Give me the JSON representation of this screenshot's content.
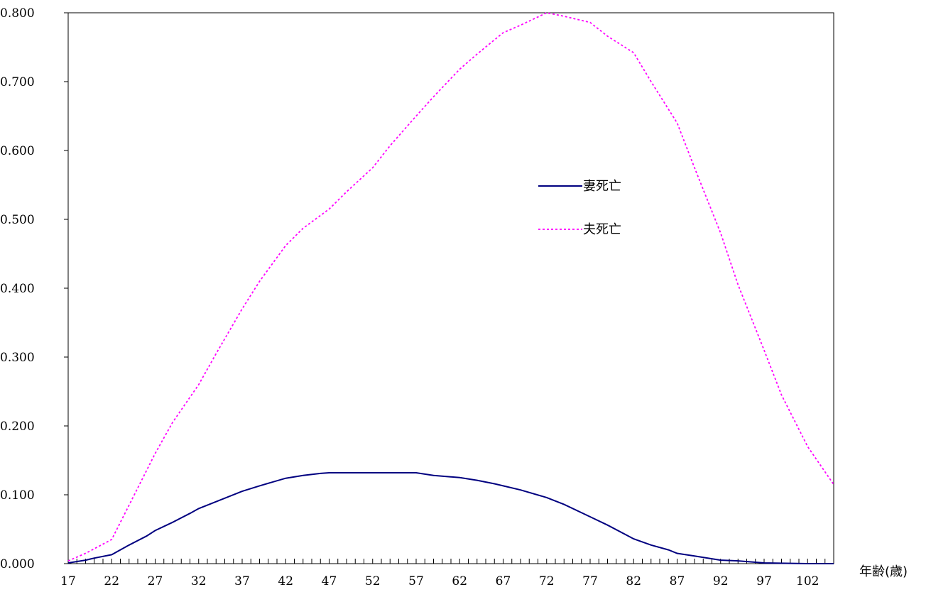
{
  "chart_data": {
    "type": "line",
    "title": "",
    "xlabel": "年齢(歳)",
    "ylabel": "",
    "xlim": [
      17,
      105
    ],
    "ylim": [
      0,
      0.8
    ],
    "x_tick_labels": [
      "17",
      "22",
      "27",
      "32",
      "37",
      "42",
      "47",
      "52",
      "57",
      "62",
      "67",
      "72",
      "77",
      "82",
      "87",
      "92",
      "97",
      "102"
    ],
    "y_tick_labels": [
      "0.000",
      "0.100",
      "0.200",
      "0.300",
      "0.400",
      "0.500",
      "0.600",
      "0.700",
      "0.800"
    ],
    "legend_position": "center-right inside plot",
    "grid": false,
    "series": [
      {
        "name": "妻死亡",
        "color": "#000080",
        "style": "solid",
        "points": [
          [
            17,
            0.001
          ],
          [
            19,
            0.005
          ],
          [
            20,
            0.008
          ],
          [
            22,
            0.013
          ],
          [
            24,
            0.027
          ],
          [
            26,
            0.04
          ],
          [
            27,
            0.048
          ],
          [
            29,
            0.06
          ],
          [
            31,
            0.073
          ],
          [
            32,
            0.08
          ],
          [
            34,
            0.09
          ],
          [
            37,
            0.105
          ],
          [
            39,
            0.113
          ],
          [
            42,
            0.124
          ],
          [
            44,
            0.128
          ],
          [
            46,
            0.131
          ],
          [
            47,
            0.132
          ],
          [
            52,
            0.132
          ],
          [
            57,
            0.132
          ],
          [
            59,
            0.128
          ],
          [
            62,
            0.125
          ],
          [
            64,
            0.121
          ],
          [
            66,
            0.116
          ],
          [
            67,
            0.113
          ],
          [
            69,
            0.107
          ],
          [
            72,
            0.096
          ],
          [
            74,
            0.086
          ],
          [
            77,
            0.068
          ],
          [
            79,
            0.056
          ],
          [
            82,
            0.036
          ],
          [
            84,
            0.027
          ],
          [
            86,
            0.02
          ],
          [
            87,
            0.015
          ],
          [
            89,
            0.011
          ],
          [
            92,
            0.005
          ],
          [
            94,
            0.004
          ],
          [
            97,
            0.001
          ],
          [
            102,
            0.0
          ],
          [
            105,
            0.0
          ]
        ]
      },
      {
        "name": "夫死亡",
        "color": "#ff00ff",
        "style": "dotted",
        "points": [
          [
            17,
            0.004
          ],
          [
            19,
            0.015
          ],
          [
            22,
            0.035
          ],
          [
            24,
            0.085
          ],
          [
            27,
            0.16
          ],
          [
            29,
            0.205
          ],
          [
            32,
            0.26
          ],
          [
            34,
            0.305
          ],
          [
            37,
            0.37
          ],
          [
            39,
            0.41
          ],
          [
            42,
            0.462
          ],
          [
            44,
            0.487
          ],
          [
            47,
            0.515
          ],
          [
            49,
            0.54
          ],
          [
            52,
            0.575
          ],
          [
            54,
            0.607
          ],
          [
            57,
            0.65
          ],
          [
            59,
            0.678
          ],
          [
            62,
            0.718
          ],
          [
            64,
            0.74
          ],
          [
            67,
            0.771
          ],
          [
            69,
            0.782
          ],
          [
            72,
            0.8
          ],
          [
            74,
            0.795
          ],
          [
            77,
            0.786
          ],
          [
            79,
            0.766
          ],
          [
            82,
            0.742
          ],
          [
            84,
            0.7
          ],
          [
            87,
            0.64
          ],
          [
            89,
            0.575
          ],
          [
            92,
            0.48
          ],
          [
            94,
            0.405
          ],
          [
            97,
            0.31
          ],
          [
            99,
            0.245
          ],
          [
            102,
            0.17
          ],
          [
            105,
            0.115
          ]
        ]
      }
    ]
  }
}
